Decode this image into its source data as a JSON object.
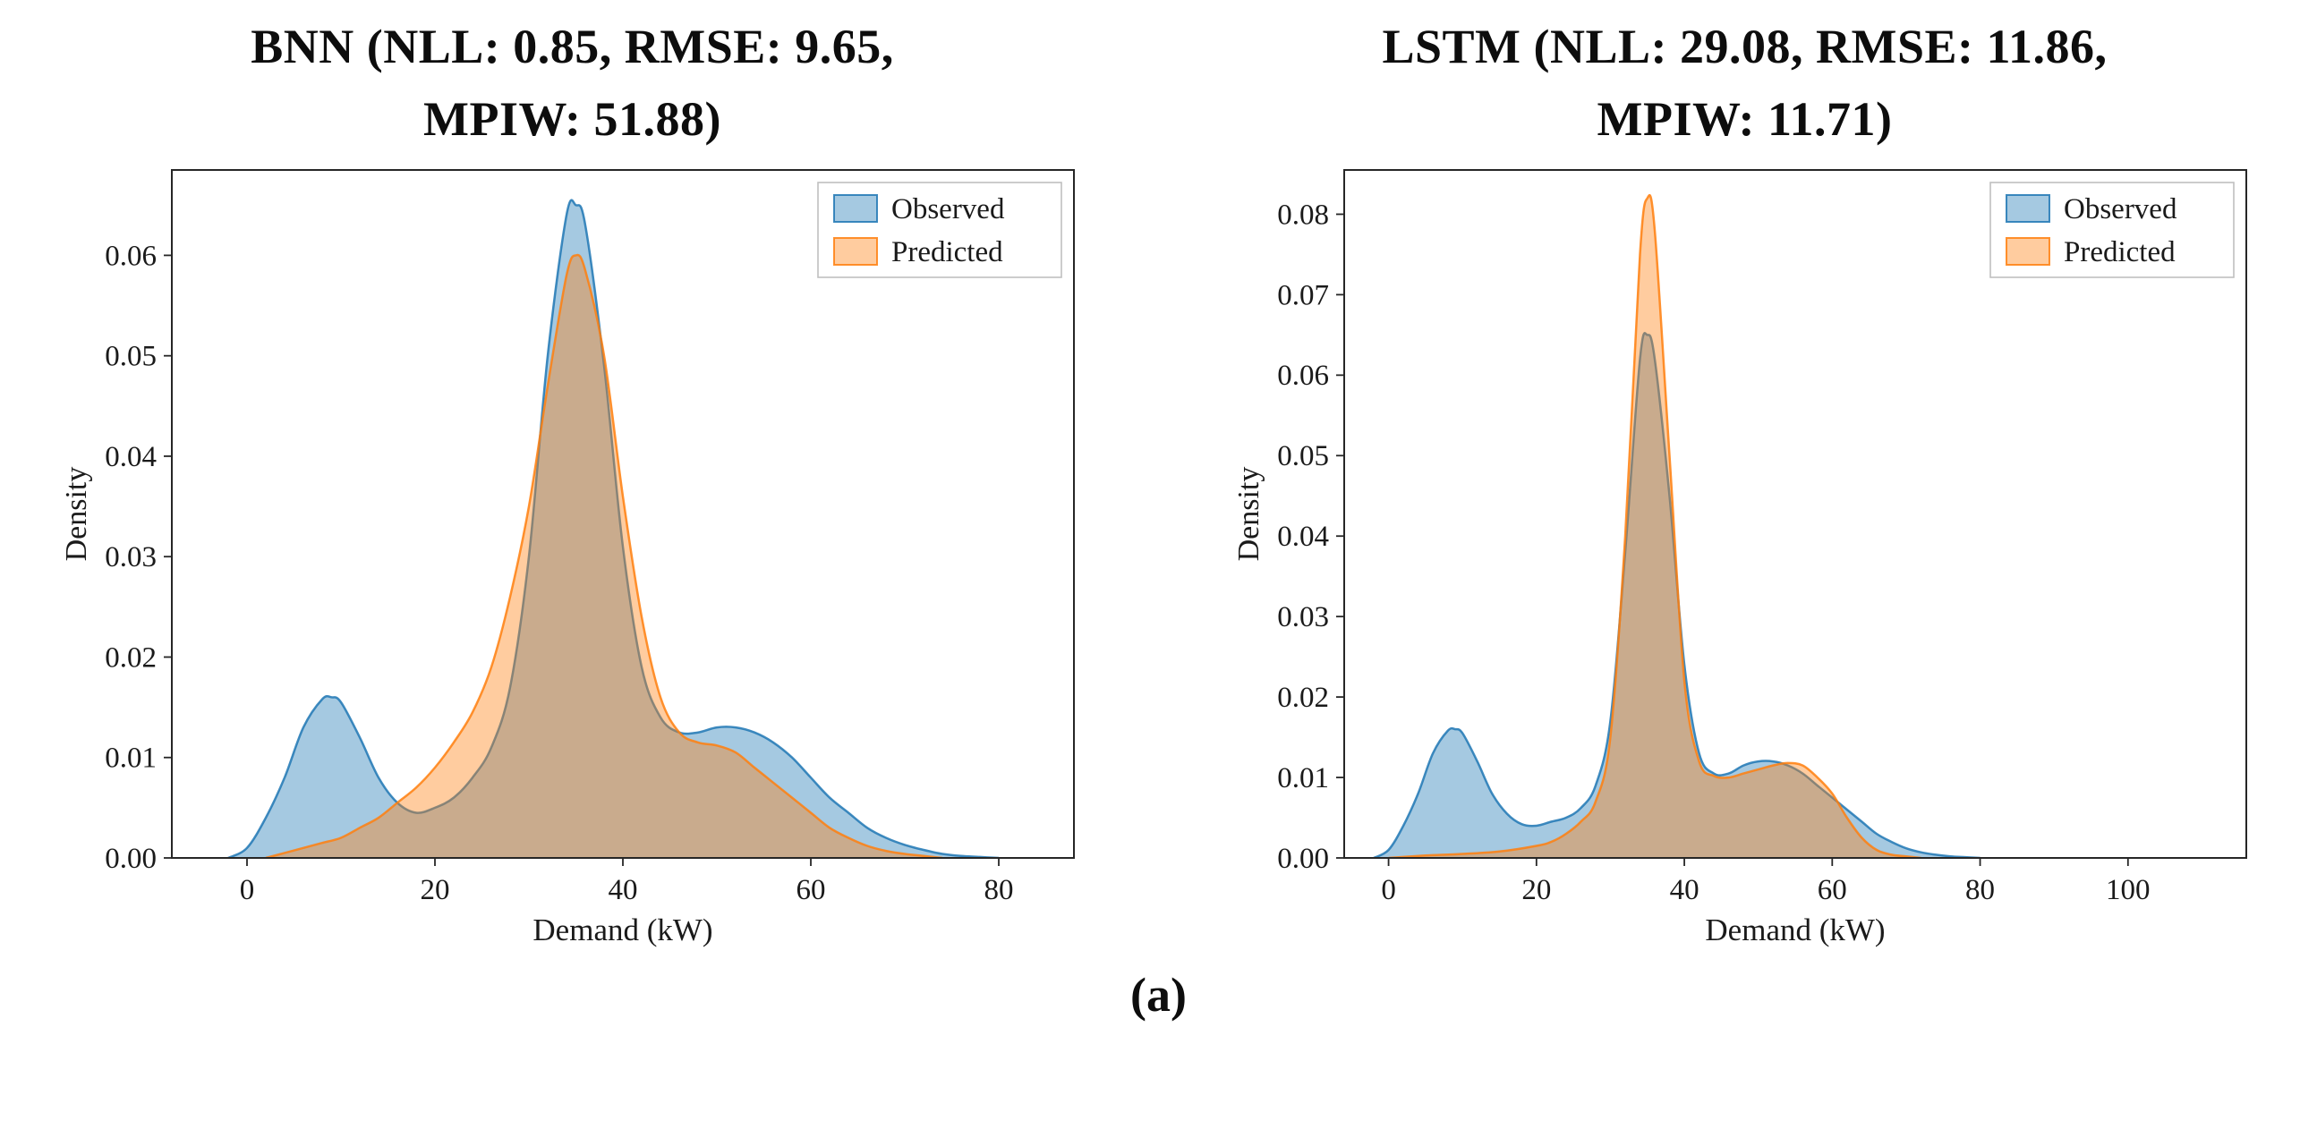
{
  "figure": {
    "caption": "(a)"
  },
  "chart_data": [
    {
      "type": "area",
      "kind": "kde-density-overlay",
      "title": "BNN (NLL: 0.85, RMSE: 9.65, MPIW: 51.88)",
      "title_lines": [
        "BNN (NLL: 0.85, RMSE: 9.65,",
        "MPIW: 51.88)"
      ],
      "metrics": {
        "NLL": 0.85,
        "RMSE": 9.65,
        "MPIW": 51.88
      },
      "xlabel": "Demand (kW)",
      "ylabel": "Density",
      "xlim": [
        -8,
        88
      ],
      "ylim": [
        0,
        0.0685
      ],
      "xticks": [
        0,
        20,
        40,
        60,
        80
      ],
      "xtick_labels": [
        "0",
        "20",
        "40",
        "60",
        "80"
      ],
      "yticks": [
        0,
        0.01,
        0.02,
        0.03,
        0.04,
        0.05,
        0.06
      ],
      "ytick_labels": [
        "0.00",
        "0.01",
        "0.02",
        "0.03",
        "0.04",
        "0.05",
        "0.06"
      ],
      "grid": false,
      "legend_position": "upper right",
      "series": [
        {
          "name": "Observed",
          "color": "#1f77b4",
          "fill_opacity": 0.4,
          "x": [
            -2,
            0,
            2,
            4,
            6,
            8,
            9,
            10,
            12,
            14,
            16,
            18,
            20,
            22,
            24,
            26,
            28,
            30,
            32,
            34,
            35,
            36,
            38,
            40,
            42,
            44,
            46,
            48,
            50,
            52,
            54,
            56,
            58,
            60,
            62,
            64,
            66,
            68,
            70,
            72,
            74,
            76,
            78,
            80
          ],
          "y": [
            0,
            0.001,
            0.004,
            0.008,
            0.013,
            0.0158,
            0.016,
            0.0155,
            0.012,
            0.008,
            0.0055,
            0.0045,
            0.005,
            0.006,
            0.008,
            0.011,
            0.017,
            0.03,
            0.05,
            0.064,
            0.065,
            0.063,
            0.049,
            0.031,
            0.019,
            0.014,
            0.0125,
            0.0125,
            0.013,
            0.013,
            0.0125,
            0.0115,
            0.01,
            0.008,
            0.006,
            0.0045,
            0.003,
            0.002,
            0.0013,
            0.0008,
            0.0004,
            0.0002,
            0.0001,
            0
          ]
        },
        {
          "name": "Predicted",
          "color": "#ff7f0e",
          "fill_opacity": 0.4,
          "x": [
            2,
            4,
            6,
            8,
            10,
            12,
            14,
            16,
            18,
            20,
            22,
            24,
            26,
            28,
            30,
            32,
            34,
            35,
            36,
            38,
            40,
            42,
            44,
            46,
            48,
            50,
            52,
            54,
            56,
            58,
            60,
            62,
            64,
            66,
            68,
            70,
            72,
            74
          ],
          "y": [
            0,
            0.0005,
            0.001,
            0.0015,
            0.002,
            0.003,
            0.004,
            0.0055,
            0.007,
            0.009,
            0.0115,
            0.0145,
            0.019,
            0.026,
            0.035,
            0.047,
            0.058,
            0.06,
            0.0585,
            0.05,
            0.036,
            0.024,
            0.016,
            0.0125,
            0.0115,
            0.0112,
            0.0105,
            0.009,
            0.0075,
            0.006,
            0.0045,
            0.003,
            0.002,
            0.0012,
            0.0007,
            0.0004,
            0.0002,
            0
          ]
        }
      ]
    },
    {
      "type": "area",
      "kind": "kde-density-overlay",
      "title": "LSTM (NLL: 29.08, RMSE: 11.86, MPIW: 11.71)",
      "title_lines": [
        "LSTM (NLL: 29.08, RMSE: 11.86,",
        "MPIW: 11.71)"
      ],
      "metrics": {
        "NLL": 29.08,
        "RMSE": 11.86,
        "MPIW": 11.71
      },
      "xlabel": "Demand (kW)",
      "ylabel": "Density",
      "xlim": [
        -6,
        116
      ],
      "ylim": [
        0,
        0.0855
      ],
      "xticks": [
        0,
        20,
        40,
        60,
        80,
        100
      ],
      "xtick_labels": [
        "0",
        "20",
        "40",
        "60",
        "80",
        "100"
      ],
      "yticks": [
        0,
        0.01,
        0.02,
        0.03,
        0.04,
        0.05,
        0.06,
        0.07,
        0.08
      ],
      "ytick_labels": [
        "0.00",
        "0.01",
        "0.02",
        "0.03",
        "0.04",
        "0.05",
        "0.06",
        "0.07",
        "0.08"
      ],
      "grid": false,
      "legend_position": "upper right",
      "series": [
        {
          "name": "Observed",
          "color": "#1f77b4",
          "fill_opacity": 0.4,
          "x": [
            -2,
            0,
            2,
            4,
            6,
            8,
            9,
            10,
            12,
            14,
            16,
            18,
            20,
            22,
            24,
            26,
            28,
            30,
            32,
            34,
            35,
            36,
            38,
            40,
            42,
            44,
            46,
            48,
            50,
            52,
            54,
            56,
            58,
            60,
            62,
            64,
            66,
            68,
            70,
            72,
            74,
            76,
            78,
            80
          ],
          "y": [
            0,
            0.001,
            0.004,
            0.008,
            0.013,
            0.0158,
            0.016,
            0.0155,
            0.012,
            0.008,
            0.0055,
            0.0042,
            0.004,
            0.0045,
            0.005,
            0.0062,
            0.009,
            0.017,
            0.038,
            0.062,
            0.065,
            0.062,
            0.045,
            0.024,
            0.013,
            0.0105,
            0.0105,
            0.0115,
            0.012,
            0.012,
            0.0115,
            0.0105,
            0.009,
            0.0075,
            0.006,
            0.0045,
            0.003,
            0.002,
            0.0012,
            0.0007,
            0.0004,
            0.0002,
            0.0001,
            0
          ]
        },
        {
          "name": "Predicted",
          "color": "#ff7f0e",
          "fill_opacity": 0.4,
          "x": [
            0,
            5,
            10,
            15,
            20,
            22,
            24,
            26,
            28,
            30,
            32,
            34,
            35,
            36,
            38,
            40,
            42,
            44,
            46,
            48,
            50,
            52,
            54,
            56,
            58,
            60,
            62,
            64,
            66,
            68,
            70,
            72
          ],
          "y": [
            0,
            0.0003,
            0.0005,
            0.0008,
            0.0015,
            0.002,
            0.003,
            0.0045,
            0.007,
            0.015,
            0.04,
            0.075,
            0.082,
            0.078,
            0.05,
            0.022,
            0.012,
            0.0102,
            0.01,
            0.0105,
            0.011,
            0.0115,
            0.0118,
            0.0115,
            0.01,
            0.008,
            0.005,
            0.0025,
            0.001,
            0.0004,
            0.0002,
            0
          ]
        }
      ]
    }
  ],
  "style": {
    "axis_color": "#262626",
    "text_color": "#1a1a1a",
    "legend_border_color": "#bfbfbf"
  }
}
